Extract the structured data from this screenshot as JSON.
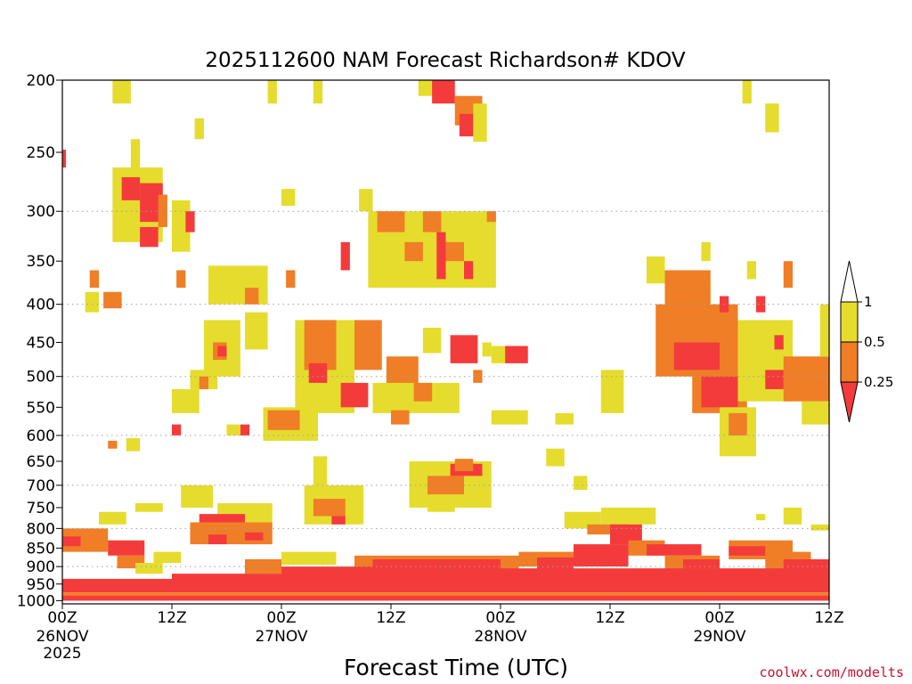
{
  "chart_data": {
    "type": "heatmap",
    "title": "2025112600 NAM Forecast Richardson# KDOV",
    "xlabel": "Forecast Time (UTC)",
    "ylabel": "",
    "credit": "coolwx.com/modelts",
    "x_range_hours": [
      0,
      84
    ],
    "y_range_hpa": [
      200,
      1010
    ],
    "y_ticks": [
      "200",
      "250",
      "300",
      "350",
      "400",
      "450",
      "500",
      "550",
      "600",
      "650",
      "700",
      "750",
      "800",
      "850",
      "900",
      "950",
      "1000"
    ],
    "x_ticks": [
      {
        "hour": 0,
        "time": "00Z",
        "date": "26NOV",
        "year": "2025"
      },
      {
        "hour": 12,
        "time": "12Z",
        "date": "",
        "year": ""
      },
      {
        "hour": 24,
        "time": "00Z",
        "date": "27NOV",
        "year": ""
      },
      {
        "hour": 36,
        "time": "12Z",
        "date": "",
        "year": ""
      },
      {
        "hour": 48,
        "time": "00Z",
        "date": "28NOV",
        "year": ""
      },
      {
        "hour": 60,
        "time": "12Z",
        "date": "",
        "year": ""
      },
      {
        "hour": 72,
        "time": "00Z",
        "date": "29NOV",
        "year": ""
      },
      {
        "hour": 84,
        "time": "12Z",
        "date": "",
        "year": ""
      }
    ],
    "legend": {
      "levels": [
        "1",
        "0.5",
        "0.25"
      ],
      "bins": [
        {
          "label": "0.5 to 1",
          "color": "#e5dc2e"
        },
        {
          "label": "0.25 to 0.5",
          "color": "#ef7e26"
        },
        {
          "label": "< 0.25",
          "color": "#f43b3b"
        }
      ],
      "above_color": "#ffffff",
      "below_color": "#f43b3b"
    },
    "colors": {
      "yellow": "#e5dc2e",
      "orange": "#ef7e26",
      "red": "#f43b3b",
      "ground": "#8b4513",
      "grid": "#a0a0a0"
    },
    "patches": [
      {
        "bin": "yellow",
        "t0": 5.5,
        "t1": 7.5,
        "p0": 200,
        "p1": 215
      },
      {
        "bin": "yellow",
        "t0": 22.5,
        "t1": 23.5,
        "p0": 200,
        "p1": 215
      },
      {
        "bin": "yellow",
        "t0": 27.5,
        "t1": 28.5,
        "p0": 200,
        "p1": 215
      },
      {
        "bin": "yellow",
        "t0": 39,
        "t1": 41.5,
        "p0": 200,
        "p1": 210
      },
      {
        "bin": "red",
        "t0": 40.5,
        "t1": 43,
        "p0": 200,
        "p1": 215
      },
      {
        "bin": "orange",
        "t0": 43,
        "t1": 46,
        "p0": 210,
        "p1": 230
      },
      {
        "bin": "red",
        "t0": 43.5,
        "t1": 45.5,
        "p0": 222,
        "p1": 238
      },
      {
        "bin": "yellow",
        "t0": 45,
        "t1": 46.5,
        "p0": 215,
        "p1": 242
      },
      {
        "bin": "yellow",
        "t0": 74.5,
        "t1": 75.5,
        "p0": 200,
        "p1": 215
      },
      {
        "bin": "yellow",
        "t0": 77,
        "t1": 78.5,
        "p0": 215,
        "p1": 235
      },
      {
        "bin": "yellow",
        "t0": 14.5,
        "t1": 15.5,
        "p0": 225,
        "p1": 240
      },
      {
        "bin": "red",
        "t0": 0,
        "t1": 0.4,
        "p0": 248,
        "p1": 262
      },
      {
        "bin": "yellow",
        "t0": 7.5,
        "t1": 8.5,
        "p0": 240,
        "p1": 262
      },
      {
        "bin": "yellow",
        "t0": 5.5,
        "t1": 11,
        "p0": 262,
        "p1": 330
      },
      {
        "bin": "red",
        "t0": 6.5,
        "t1": 8.5,
        "p0": 270,
        "p1": 290
      },
      {
        "bin": "red",
        "t0": 8.5,
        "t1": 11,
        "p0": 275,
        "p1": 310
      },
      {
        "bin": "red",
        "t0": 8.5,
        "t1": 10.5,
        "p0": 315,
        "p1": 335
      },
      {
        "bin": "orange",
        "t0": 10.5,
        "t1": 11.5,
        "p0": 285,
        "p1": 315
      },
      {
        "bin": "yellow",
        "t0": 12,
        "t1": 14,
        "p0": 290,
        "p1": 340
      },
      {
        "bin": "red",
        "t0": 13.5,
        "t1": 14.5,
        "p0": 300,
        "p1": 320
      },
      {
        "bin": "yellow",
        "t0": 24,
        "t1": 25.5,
        "p0": 280,
        "p1": 295
      },
      {
        "bin": "yellow",
        "t0": 32.5,
        "t1": 34,
        "p0": 280,
        "p1": 300
      },
      {
        "bin": "yellow",
        "t0": 33.5,
        "t1": 47.5,
        "p0": 300,
        "p1": 380
      },
      {
        "bin": "orange",
        "t0": 34.5,
        "t1": 37.5,
        "p0": 300,
        "p1": 320
      },
      {
        "bin": "orange",
        "t0": 37.5,
        "t1": 39.5,
        "p0": 330,
        "p1": 350
      },
      {
        "bin": "orange",
        "t0": 39.5,
        "t1": 41.5,
        "p0": 300,
        "p1": 320
      },
      {
        "bin": "red",
        "t0": 30.5,
        "t1": 31.5,
        "p0": 330,
        "p1": 360
      },
      {
        "bin": "red",
        "t0": 41,
        "t1": 42,
        "p0": 320,
        "p1": 370
      },
      {
        "bin": "orange",
        "t0": 42,
        "t1": 44,
        "p0": 330,
        "p1": 350
      },
      {
        "bin": "red",
        "t0": 44,
        "t1": 45,
        "p0": 350,
        "p1": 370
      },
      {
        "bin": "orange",
        "t0": 46.5,
        "t1": 47.5,
        "p0": 300,
        "p1": 310
      },
      {
        "bin": "yellow",
        "t0": 16,
        "t1": 22.5,
        "p0": 355,
        "p1": 400
      },
      {
        "bin": "orange",
        "t0": 12.5,
        "t1": 13.5,
        "p0": 360,
        "p1": 380
      },
      {
        "bin": "orange",
        "t0": 20,
        "t1": 21.5,
        "p0": 380,
        "p1": 400
      },
      {
        "bin": "orange",
        "t0": 24.5,
        "t1": 25.5,
        "p0": 360,
        "p1": 380
      },
      {
        "bin": "yellow",
        "t0": 2.5,
        "t1": 4,
        "p0": 385,
        "p1": 410
      },
      {
        "bin": "orange",
        "t0": 4.5,
        "t1": 6.5,
        "p0": 385,
        "p1": 405
      },
      {
        "bin": "orange",
        "t0": 3,
        "t1": 4,
        "p0": 360,
        "p1": 380
      },
      {
        "bin": "yellow",
        "t0": 15.5,
        "t1": 19.5,
        "p0": 420,
        "p1": 500
      },
      {
        "bin": "orange",
        "t0": 16.5,
        "t1": 18,
        "p0": 450,
        "p1": 475
      },
      {
        "bin": "red",
        "t0": 17,
        "t1": 18,
        "p0": 455,
        "p1": 470
      },
      {
        "bin": "yellow",
        "t0": 20,
        "t1": 22.5,
        "p0": 410,
        "p1": 460
      },
      {
        "bin": "yellow",
        "t0": 25.5,
        "t1": 32,
        "p0": 420,
        "p1": 560
      },
      {
        "bin": "orange",
        "t0": 26.5,
        "t1": 30,
        "p0": 420,
        "p1": 490
      },
      {
        "bin": "red",
        "t0": 27,
        "t1": 29,
        "p0": 480,
        "p1": 510
      },
      {
        "bin": "red",
        "t0": 30.5,
        "t1": 33.5,
        "p0": 510,
        "p1": 550
      },
      {
        "bin": "orange",
        "t0": 32,
        "t1": 35,
        "p0": 420,
        "p1": 490
      },
      {
        "bin": "orange",
        "t0": 35.5,
        "t1": 39,
        "p0": 470,
        "p1": 520
      },
      {
        "bin": "yellow",
        "t0": 34,
        "t1": 43.5,
        "p0": 510,
        "p1": 560
      },
      {
        "bin": "orange",
        "t0": 36,
        "t1": 38,
        "p0": 555,
        "p1": 580
      },
      {
        "bin": "orange",
        "t0": 38.5,
        "t1": 40.5,
        "p0": 510,
        "p1": 540
      },
      {
        "bin": "yellow",
        "t0": 22,
        "t1": 28,
        "p0": 550,
        "p1": 610
      },
      {
        "bin": "orange",
        "t0": 22.5,
        "t1": 26,
        "p0": 555,
        "p1": 590
      },
      {
        "bin": "yellow",
        "t0": 39.5,
        "t1": 41.5,
        "p0": 430,
        "p1": 465
      },
      {
        "bin": "red",
        "t0": 42.5,
        "t1": 45.5,
        "p0": 440,
        "p1": 480
      },
      {
        "bin": "yellow",
        "t0": 46,
        "t1": 47,
        "p0": 450,
        "p1": 470
      },
      {
        "bin": "yellow",
        "t0": 47,
        "t1": 48.5,
        "p0": 455,
        "p1": 480
      },
      {
        "bin": "red",
        "t0": 48.5,
        "t1": 51,
        "p0": 455,
        "p1": 480
      },
      {
        "bin": "orange",
        "t0": 45,
        "t1": 46,
        "p0": 490,
        "p1": 510
      },
      {
        "bin": "yellow",
        "t0": 47,
        "t1": 51,
        "p0": 555,
        "p1": 580
      },
      {
        "bin": "yellow",
        "t0": 54,
        "t1": 56,
        "p0": 560,
        "p1": 580
      },
      {
        "bin": "orange",
        "t0": 59.5,
        "t1": 60.5,
        "p0": 500,
        "p1": 550
      },
      {
        "bin": "yellow",
        "t0": 59,
        "t1": 61.5,
        "p0": 490,
        "p1": 560
      },
      {
        "bin": "yellow",
        "t0": 14,
        "t1": 17,
        "p0": 490,
        "p1": 520
      },
      {
        "bin": "orange",
        "t0": 15,
        "t1": 16,
        "p0": 500,
        "p1": 520
      },
      {
        "bin": "yellow",
        "t0": 12,
        "t1": 15,
        "p0": 520,
        "p1": 560
      },
      {
        "bin": "red",
        "t0": 12,
        "t1": 13,
        "p0": 580,
        "p1": 600
      },
      {
        "bin": "yellow",
        "t0": 7,
        "t1": 8.5,
        "p0": 605,
        "p1": 630
      },
      {
        "bin": "orange",
        "t0": 5,
        "t1": 6,
        "p0": 610,
        "p1": 625
      },
      {
        "bin": "red",
        "t0": 19.5,
        "t1": 20.5,
        "p0": 580,
        "p1": 600
      },
      {
        "bin": "yellow",
        "t0": 18,
        "t1": 19.5,
        "p0": 580,
        "p1": 600
      },
      {
        "bin": "yellow",
        "t0": 53,
        "t1": 55,
        "p0": 625,
        "p1": 660
      },
      {
        "bin": "yellow",
        "t0": 56,
        "t1": 57.5,
        "p0": 680,
        "p1": 710
      },
      {
        "bin": "yellow",
        "t0": 38,
        "t1": 47,
        "p0": 650,
        "p1": 750
      },
      {
        "bin": "orange",
        "t0": 40,
        "t1": 44,
        "p0": 680,
        "p1": 720
      },
      {
        "bin": "red",
        "t0": 42.5,
        "t1": 46,
        "p0": 655,
        "p1": 680
      },
      {
        "bin": "orange",
        "t0": 43,
        "t1": 45,
        "p0": 645,
        "p1": 670
      },
      {
        "bin": "yellow",
        "t0": 26.5,
        "t1": 33,
        "p0": 700,
        "p1": 790
      },
      {
        "bin": "orange",
        "t0": 27.5,
        "t1": 31,
        "p0": 730,
        "p1": 770
      },
      {
        "bin": "red",
        "t0": 29.5,
        "t1": 31,
        "p0": 770,
        "p1": 790
      },
      {
        "bin": "yellow",
        "t0": 13,
        "t1": 16.5,
        "p0": 700,
        "p1": 750
      },
      {
        "bin": "yellow",
        "t0": 17,
        "t1": 23,
        "p0": 740,
        "p1": 800
      },
      {
        "bin": "red",
        "t0": 15,
        "t1": 20,
        "p0": 765,
        "p1": 785
      },
      {
        "bin": "orange",
        "t0": 14,
        "t1": 23,
        "p0": 785,
        "p1": 840
      },
      {
        "bin": "red",
        "t0": 16,
        "t1": 18,
        "p0": 815,
        "p1": 840
      },
      {
        "bin": "red",
        "t0": 20,
        "t1": 22,
        "p0": 810,
        "p1": 830
      },
      {
        "bin": "yellow",
        "t0": 8,
        "t1": 11,
        "p0": 740,
        "p1": 760
      },
      {
        "bin": "yellow",
        "t0": 4,
        "t1": 7,
        "p0": 760,
        "p1": 790
      },
      {
        "bin": "orange",
        "t0": 0,
        "t1": 5,
        "p0": 800,
        "p1": 860
      },
      {
        "bin": "red",
        "t0": 0,
        "t1": 2,
        "p0": 820,
        "p1": 845
      },
      {
        "bin": "red",
        "t0": 5,
        "t1": 9,
        "p0": 830,
        "p1": 870
      },
      {
        "bin": "orange",
        "t0": 6,
        "t1": 9,
        "p0": 870,
        "p1": 905
      },
      {
        "bin": "yellow",
        "t0": 10,
        "t1": 13,
        "p0": 860,
        "p1": 890
      },
      {
        "bin": "yellow",
        "t0": 8,
        "t1": 11,
        "p0": 890,
        "p1": 920
      },
      {
        "bin": "yellow",
        "t0": 55,
        "t1": 59,
        "p0": 760,
        "p1": 800
      },
      {
        "bin": "yellow",
        "t0": 59,
        "t1": 65,
        "p0": 750,
        "p1": 790
      },
      {
        "bin": "orange",
        "t0": 57.5,
        "t1": 62,
        "p0": 790,
        "p1": 815
      },
      {
        "bin": "red",
        "t0": 60,
        "t1": 63.5,
        "p0": 790,
        "p1": 840
      },
      {
        "bin": "red",
        "t0": 56,
        "t1": 62,
        "p0": 840,
        "p1": 900
      },
      {
        "bin": "orange",
        "t0": 62,
        "t1": 66,
        "p0": 830,
        "p1": 870
      },
      {
        "bin": "red",
        "t0": 64,
        "t1": 70,
        "p0": 840,
        "p1": 870
      },
      {
        "bin": "orange",
        "t0": 50,
        "t1": 56,
        "p0": 860,
        "p1": 900
      },
      {
        "bin": "red",
        "t0": 52,
        "t1": 56,
        "p0": 875,
        "p1": 915
      },
      {
        "bin": "orange",
        "t0": 32,
        "t1": 50,
        "p0": 870,
        "p1": 920
      },
      {
        "bin": "red",
        "t0": 34,
        "t1": 48,
        "p0": 880,
        "p1": 930
      },
      {
        "bin": "red",
        "t0": 24,
        "t1": 34,
        "p0": 900,
        "p1": 940
      },
      {
        "bin": "yellow",
        "t0": 24,
        "t1": 30,
        "p0": 860,
        "p1": 895
      },
      {
        "bin": "orange",
        "t0": 20,
        "t1": 24,
        "p0": 880,
        "p1": 920
      },
      {
        "bin": "orange",
        "t0": 73,
        "t1": 80,
        "p0": 830,
        "p1": 880
      },
      {
        "bin": "red",
        "t0": 73,
        "t1": 77,
        "p0": 845,
        "p1": 870
      },
      {
        "bin": "orange",
        "t0": 77,
        "t1": 82,
        "p0": 860,
        "p1": 910
      },
      {
        "bin": "red",
        "t0": 79,
        "t1": 84,
        "p0": 880,
        "p1": 930
      },
      {
        "bin": "yellow",
        "t0": 82,
        "t1": 84,
        "p0": 790,
        "p1": 805
      },
      {
        "bin": "yellow",
        "t0": 79,
        "t1": 81,
        "p0": 750,
        "p1": 790
      },
      {
        "bin": "yellow",
        "t0": 76,
        "t1": 77,
        "p0": 765,
        "p1": 780
      },
      {
        "bin": "orange",
        "t0": 66,
        "t1": 72,
        "p0": 870,
        "p1": 910
      },
      {
        "bin": "red",
        "t0": 68,
        "t1": 72,
        "p0": 880,
        "p1": 905
      },
      {
        "bin": "red",
        "t0": 70,
        "t1": 84,
        "p0": 915,
        "p1": 945
      },
      {
        "bin": "red",
        "t0": 0,
        "t1": 12,
        "p0": 935,
        "p1": 975
      },
      {
        "bin": "red",
        "t0": 12,
        "t1": 30,
        "p0": 920,
        "p1": 975
      },
      {
        "bin": "red",
        "t0": 30,
        "t1": 84,
        "p0": 905,
        "p1": 975
      },
      {
        "bin": "orange",
        "t0": 0,
        "t1": 84,
        "p0": 975,
        "p1": 1000
      },
      {
        "bin": "red",
        "t0": 0,
        "t1": 84,
        "p0": 955,
        "p1": 970
      },
      {
        "bin": "red",
        "t0": 0,
        "t1": 84,
        "p0": 985,
        "p1": 1000
      },
      {
        "bin": "yellow",
        "t0": 40,
        "t1": 43,
        "p0": 725,
        "p1": 760
      },
      {
        "bin": "yellow",
        "t0": 27.5,
        "t1": 29,
        "p0": 640,
        "p1": 700
      },
      {
        "bin": "yellow",
        "t0": 66,
        "t1": 71,
        "p0": 370,
        "p1": 460
      },
      {
        "bin": "yellow",
        "t0": 64,
        "t1": 66,
        "p0": 345,
        "p1": 375
      },
      {
        "bin": "orange",
        "t0": 66,
        "t1": 71,
        "p0": 360,
        "p1": 420
      },
      {
        "bin": "orange",
        "t0": 65,
        "t1": 74,
        "p0": 400,
        "p1": 500
      },
      {
        "bin": "red",
        "t0": 67,
        "t1": 72,
        "p0": 450,
        "p1": 490
      },
      {
        "bin": "orange",
        "t0": 69,
        "t1": 75,
        "p0": 490,
        "p1": 560
      },
      {
        "bin": "red",
        "t0": 70,
        "t1": 74,
        "p0": 500,
        "p1": 550
      },
      {
        "bin": "yellow",
        "t0": 72,
        "t1": 76,
        "p0": 550,
        "p1": 640
      },
      {
        "bin": "orange",
        "t0": 73,
        "t1": 75,
        "p0": 560,
        "p1": 600
      },
      {
        "bin": "yellow",
        "t0": 74,
        "t1": 80,
        "p0": 420,
        "p1": 540
      },
      {
        "bin": "orange",
        "t0": 79,
        "t1": 84,
        "p0": 470,
        "p1": 540
      },
      {
        "bin": "red",
        "t0": 77,
        "t1": 79,
        "p0": 490,
        "p1": 520
      },
      {
        "bin": "yellow",
        "t0": 81,
        "t1": 84,
        "p0": 540,
        "p1": 580
      },
      {
        "bin": "yellow",
        "t0": 83,
        "t1": 84,
        "p0": 400,
        "p1": 470
      },
      {
        "bin": "red",
        "t0": 72,
        "t1": 73,
        "p0": 390,
        "p1": 410
      },
      {
        "bin": "red",
        "t0": 76,
        "t1": 77,
        "p0": 390,
        "p1": 410
      },
      {
        "bin": "red",
        "t0": 78,
        "t1": 79,
        "p0": 440,
        "p1": 460
      },
      {
        "bin": "orange",
        "t0": 79,
        "t1": 80,
        "p0": 350,
        "p1": 380
      },
      {
        "bin": "yellow",
        "t0": 70,
        "t1": 71,
        "p0": 330,
        "p1": 350
      },
      {
        "bin": "yellow",
        "t0": 75,
        "t1": 76,
        "p0": 350,
        "p1": 370
      }
    ]
  }
}
